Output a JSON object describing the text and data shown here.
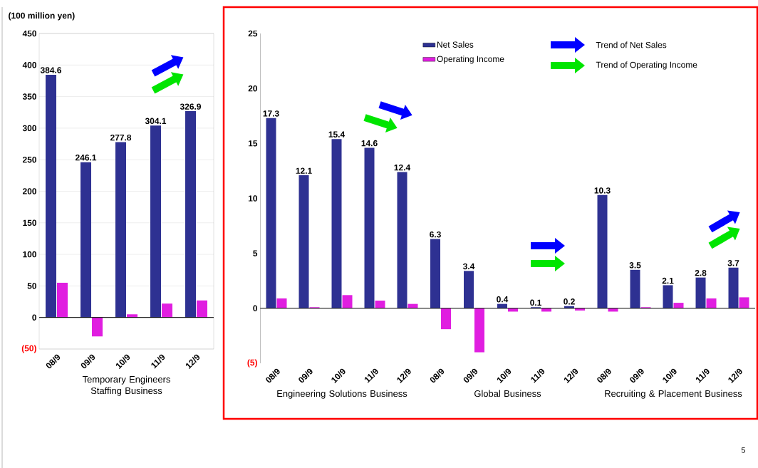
{
  "chart_data": [
    {
      "type": "bar",
      "ylabel": "(100 million yen)",
      "xlabel": "Temporary Engineers Staffing Business",
      "categories": [
        "08/9",
        "09/9",
        "10/9",
        "11/9",
        "12/9"
      ],
      "series": [
        {
          "color": "#2e3192",
          "values": [
            384.6,
            246.1,
            277.8,
            304.1,
            326.9
          ],
          "value_labels": [
            "384.6",
            "246.1",
            "277.8",
            "304.1",
            "326.9"
          ]
        },
        {
          "color": "#e01ee0",
          "values": [
            55,
            -30,
            5,
            22,
            27
          ]
        }
      ],
      "ylim": [
        -50,
        450
      ],
      "yticks": [
        {
          "value": -50,
          "label": "(50)"
        },
        0,
        50,
        100,
        150,
        200,
        250,
        300,
        350,
        400,
        450
      ],
      "grid": "y",
      "annotations": [
        "5"
      ]
    },
    {
      "type": "bar",
      "xlabel": "Engineering Solutions Business",
      "categories": [
        "08/9",
        "09/9",
        "10/9",
        "11/9",
        "12/9"
      ],
      "series": [
        {
          "name": "Net Sales",
          "color": "#2e3192",
          "values": [
            17.3,
            12.1,
            15.4,
            14.6,
            12.4
          ],
          "value_labels": [
            "17.3",
            "12.1",
            "15.4",
            "14.6",
            "12.4"
          ]
        },
        {
          "name": "Operating Income",
          "color": "#e01ee0",
          "values": [
            0.9,
            0.1,
            1.2,
            0.7,
            0.4
          ]
        }
      ],
      "ylim": [
        -5,
        25
      ],
      "yticks": [
        {
          "value": -5,
          "label": "(5)"
        },
        0,
        5,
        10,
        15,
        20,
        25
      ],
      "legend": "top",
      "annotations": [
        "Trend of Net Sales",
        "Trend of Operating Income"
      ]
    },
    {
      "type": "bar",
      "xlabel": "Global Business",
      "categories": [
        "08/9",
        "09/9",
        "10/9",
        "11/9",
        "12/9"
      ],
      "series": [
        {
          "color": "#2e3192",
          "values": [
            6.3,
            3.4,
            0.4,
            0.1,
            0.2
          ],
          "value_labels": [
            "6.3",
            "3.4",
            "0.4",
            "0.1",
            "0.2"
          ]
        },
        {
          "color": "#e01ee0",
          "values": [
            -1.9,
            -4.0,
            -0.3,
            -0.3,
            -0.2
          ]
        }
      ],
      "tick_labels": "x"
    },
    {
      "type": "bar",
      "xlabel": "Recruiting & Placement Business",
      "categories": [
        "08/9",
        "09/9",
        "10/9",
        "11/9",
        "12/9"
      ],
      "series": [
        {
          "color": "#2e3192",
          "values": [
            10.3,
            3.5,
            2.1,
            2.8,
            3.7
          ],
          "value_labels": [
            "10.3",
            "3.5",
            "2.1",
            "2.8",
            "3.7"
          ]
        },
        {
          "color": "#e01ee0",
          "values": [
            -0.3,
            0.1,
            0.5,
            0.9,
            1.0
          ]
        }
      ],
      "tick_labels": "x"
    }
  ]
}
